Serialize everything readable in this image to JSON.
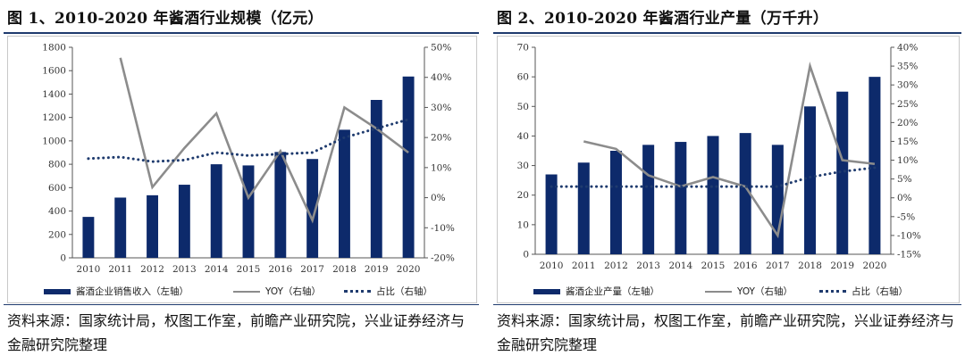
{
  "figures": [
    {
      "title": "图 1、2010-2020 年酱酒行业规模（亿元）",
      "source": "资料来源：国家统计局，权图工作室，前瞻产业研究院，兴业证券经济与金融研究院整理",
      "legend": {
        "bar": "酱酒企业销售收入（左轴）",
        "line": "YOY（右轴）",
        "dot": "占比（右轴）"
      }
    },
    {
      "title": "图 2、2010-2020 年酱酒行业产量（万千升）",
      "source": "资料来源：国家统计局，权图工作室，前瞻产业研究院，兴业证券经济与金融研究院整理",
      "legend": {
        "bar": "酱酒企业产量（左轴）",
        "line": "YOY（右轴）",
        "dot": "占比（右轴）"
      }
    }
  ],
  "colors": {
    "bar": "#0d2a6b",
    "yoy": "#8c8c8c",
    "share": "#1f3b6e"
  },
  "chart_data": [
    {
      "type": "bar",
      "title": "2010-2020 年酱酒行业规模（亿元）",
      "categories": [
        "2010",
        "2011",
        "2012",
        "2013",
        "2014",
        "2015",
        "2016",
        "2017",
        "2018",
        "2019",
        "2020"
      ],
      "left_axis": {
        "min": 0,
        "max": 1800,
        "step": 200,
        "ticks": [
          "0",
          "200",
          "400",
          "600",
          "800",
          "1000",
          "1200",
          "1400",
          "1600",
          "1800"
        ]
      },
      "right_axis": {
        "min": -20,
        "max": 50,
        "step": 10,
        "ticks": [
          "-20%",
          "-10%",
          "0%",
          "10%",
          "20%",
          "30%",
          "40%",
          "50%"
        ]
      },
      "series": [
        {
          "name": "酱酒企业销售收入（左轴）",
          "kind": "bar",
          "axis": "left",
          "values": [
            350,
            515,
            535,
            625,
            800,
            790,
            905,
            845,
            1095,
            1350,
            1550
          ]
        },
        {
          "name": "YOY（右轴）",
          "kind": "line",
          "axis": "right",
          "values": [
            null,
            46.5,
            3.5,
            16.5,
            28,
            0,
            15.5,
            -7.5,
            30,
            23,
            15
          ]
        },
        {
          "name": "占比（右轴）",
          "kind": "dotted",
          "axis": "right",
          "values": [
            13,
            13.5,
            12,
            12.5,
            15,
            14,
            14.5,
            15,
            20,
            23,
            26
          ]
        }
      ]
    },
    {
      "type": "bar",
      "title": "2010-2020 年酱酒行业产量（万千升）",
      "categories": [
        "2010",
        "2011",
        "2012",
        "2013",
        "2014",
        "2015",
        "2016",
        "2017",
        "2018",
        "2019",
        "2020"
      ],
      "left_axis": {
        "min": 0,
        "max": 70,
        "step": 10,
        "ticks": [
          "0",
          "10",
          "20",
          "30",
          "40",
          "50",
          "60",
          "70"
        ]
      },
      "right_axis": {
        "min": -15,
        "max": 40,
        "step": 5,
        "ticks": [
          "-15%",
          "-10%",
          "-5%",
          "0%",
          "5%",
          "10%",
          "15%",
          "20%",
          "25%",
          "30%",
          "35%",
          "40%"
        ]
      },
      "series": [
        {
          "name": "酱酒企业产量（左轴）",
          "kind": "bar",
          "axis": "left",
          "values": [
            27,
            31,
            35,
            37,
            38,
            40,
            41,
            37,
            50,
            55,
            60
          ]
        },
        {
          "name": "YOY（右轴）",
          "kind": "line",
          "axis": "right",
          "values": [
            null,
            15,
            13,
            6,
            3,
            5.5,
            3,
            -10,
            35,
            10,
            9
          ]
        },
        {
          "name": "占比（右轴）",
          "kind": "dotted",
          "axis": "right",
          "values": [
            3,
            3,
            3,
            3,
            3,
            3,
            3,
            3,
            5.5,
            7,
            8
          ]
        }
      ]
    }
  ]
}
